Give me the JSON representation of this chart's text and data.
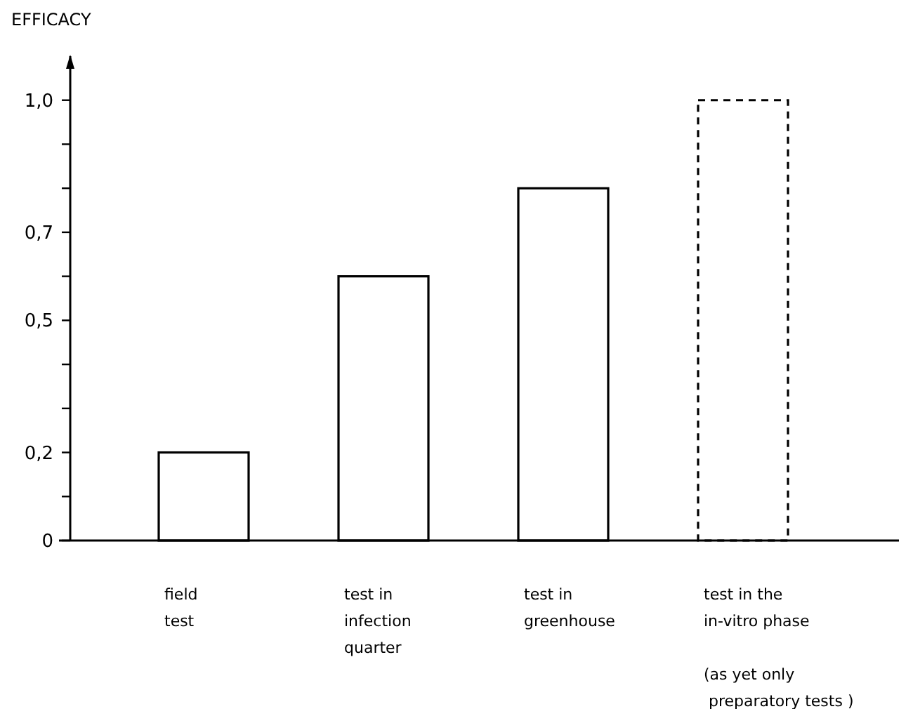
{
  "chart_data": {
    "type": "bar",
    "ylabel": "EFFICACY",
    "categories": [
      "field\ntest",
      "test in\ninfection\nquarter",
      "test in\ngreenhouse",
      "test in the\nin-vitro phase\n\n(as yet only\n preparatory tests )"
    ],
    "series": [
      {
        "color": "#ffffff",
        "values": [
          0.2,
          0.6,
          0.8,
          null
        ],
        "line_style": "solid"
      },
      {
        "color": "#ffffff",
        "values": [
          null,
          null,
          null,
          1.0
        ],
        "line_style": "dashed"
      }
    ],
    "ylim": [
      0,
      1.1
    ],
    "yticks": [
      {
        "value": 0,
        "label": "0"
      },
      {
        "value": 0.1,
        "label": null
      },
      {
        "value": 0.2,
        "label": "0,2"
      },
      {
        "value": 0.3,
        "label": null
      },
      {
        "value": 0.4,
        "label": null
      },
      {
        "value": 0.5,
        "label": "0,5"
      },
      {
        "value": 0.6,
        "label": null
      },
      {
        "value": 0.7,
        "label": "0,7"
      },
      {
        "value": 0.8,
        "label": null
      },
      {
        "value": 0.9,
        "label": null
      },
      {
        "value": 1.0,
        "label": "1,0"
      }
    ],
    "grid": false
  }
}
